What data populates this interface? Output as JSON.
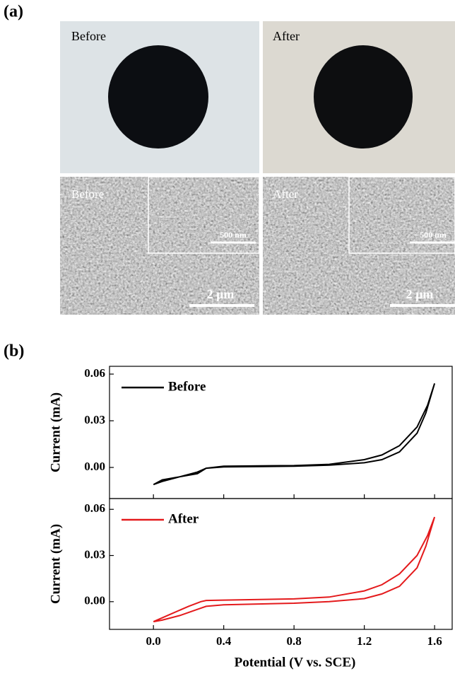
{
  "panel_a": {
    "label": "(a)",
    "labels": [
      "Before",
      "After"
    ],
    "inset_scale": "500 nm",
    "scale_bar": "2 µm"
  },
  "panel_b": {
    "label": "(b)"
  },
  "chart_data": [
    {
      "type": "line",
      "ylabel": "Current (mA)",
      "x": [
        0,
        0.05,
        0.15,
        0.25,
        0.3,
        0.4,
        0.8,
        1.0,
        1.2,
        1.3,
        1.4,
        1.5,
        1.56,
        1.6,
        1.55,
        1.5,
        1.4,
        1.3,
        1.2,
        1.0,
        0.8,
        0.4,
        0.3,
        0.25,
        0.15,
        0.05,
        0
      ],
      "series": [
        {
          "name": "Before",
          "color": "#000000",
          "values": [
            -0.011,
            -0.008,
            -0.006,
            -0.004,
            -0.0005,
            0.0008,
            0.0012,
            0.002,
            0.005,
            0.008,
            0.014,
            0.026,
            0.04,
            0.054,
            0.035,
            0.022,
            0.01,
            0.005,
            0.003,
            0.0015,
            0.0008,
            0.0003,
            -0.0005,
            -0.003,
            -0.006,
            -0.009,
            -0.011
          ]
        }
      ],
      "xlim": [
        -0.25,
        1.7
      ],
      "ylim": [
        -0.02,
        0.065
      ],
      "yticks": [
        {
          "value": 0,
          "label": "0.00"
        },
        0.03,
        0.06
      ]
    },
    {
      "type": "line",
      "ylabel": "Current (mA)",
      "xlabel": "Potential (V vs. SCE)",
      "x": [
        0,
        0.1,
        0.2,
        0.27,
        0.3,
        0.4,
        0.8,
        1.0,
        1.2,
        1.3,
        1.4,
        1.5,
        1.56,
        1.6,
        1.55,
        1.5,
        1.4,
        1.3,
        1.2,
        1.0,
        0.8,
        0.4,
        0.3,
        0.25,
        0.15,
        0.05,
        0
      ],
      "series": [
        {
          "name": "After",
          "color": "#e41a1c",
          "values": [
            -0.013,
            -0.008,
            -0.003,
            0,
            0.0008,
            0.001,
            0.0018,
            0.003,
            0.007,
            0.011,
            0.018,
            0.03,
            0.043,
            0.055,
            0.036,
            0.022,
            0.01,
            0.005,
            0.002,
            0,
            -0.001,
            -0.002,
            -0.003,
            -0.005,
            -0.009,
            -0.012,
            -0.013
          ]
        }
      ],
      "xlim": [
        -0.25,
        1.7
      ],
      "ylim": [
        -0.018,
        0.067
      ],
      "xticks": [
        {
          "value": 0,
          "label": "0.0"
        },
        0.4,
        0.8,
        1.2,
        1.6
      ],
      "yticks": [
        {
          "value": 0,
          "label": "0.00"
        },
        0.03,
        0.06
      ]
    }
  ]
}
